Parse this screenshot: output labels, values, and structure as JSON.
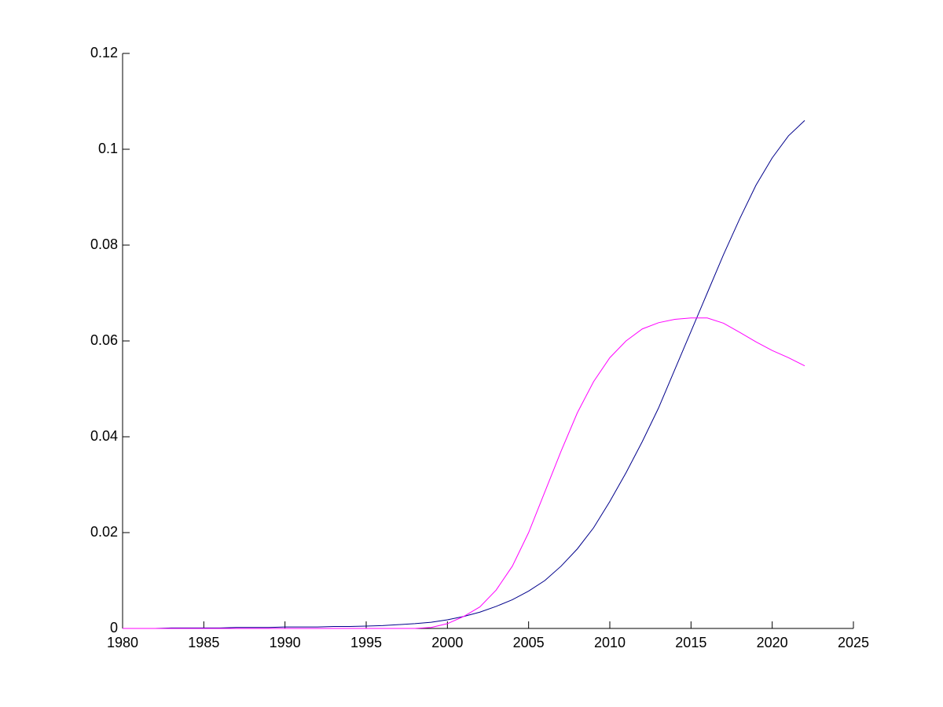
{
  "chart_data": {
    "type": "line",
    "x": [
      1980,
      1981,
      1982,
      1983,
      1984,
      1985,
      1986,
      1987,
      1988,
      1989,
      1990,
      1991,
      1992,
      1993,
      1994,
      1995,
      1996,
      1997,
      1998,
      1999,
      2000,
      2001,
      2002,
      2003,
      2004,
      2005,
      2006,
      2007,
      2008,
      2009,
      2010,
      2011,
      2012,
      2013,
      2014,
      2015,
      2016,
      2017,
      2018,
      2019,
      2020,
      2021,
      2022
    ],
    "series": [
      {
        "color": "#00008b",
        "values": [
          0,
          0,
          0,
          0.0001,
          0.0001,
          0.0001,
          0.0001,
          0.0002,
          0.0002,
          0.0002,
          0.0003,
          0.0003,
          0.0003,
          0.0004,
          0.0004,
          0.0005,
          0.0006,
          0.0008,
          0.001,
          0.0013,
          0.0018,
          0.0025,
          0.0034,
          0.0046,
          0.006,
          0.0078,
          0.01,
          0.013,
          0.0166,
          0.021,
          0.0265,
          0.0325,
          0.039,
          0.046,
          0.054,
          0.062,
          0.07,
          0.078,
          0.0855,
          0.0925,
          0.0982,
          0.1028,
          0.106
        ]
      },
      {
        "color": "#ff00ff",
        "values": [
          0,
          0,
          0,
          0,
          0,
          0,
          0,
          0,
          0,
          0,
          0,
          0,
          0,
          0,
          0,
          0,
          0,
          0,
          0,
          0.0002,
          0.001,
          0.0025,
          0.0045,
          0.008,
          0.013,
          0.02,
          0.0285,
          0.037,
          0.045,
          0.0515,
          0.0565,
          0.06,
          0.0625,
          0.0638,
          0.0645,
          0.0648,
          0.0648,
          0.0637,
          0.0618,
          0.0598,
          0.058,
          0.0565,
          0.0548
        ]
      }
    ],
    "xlim": [
      1980,
      2025
    ],
    "xticks": [
      1980,
      1985,
      1990,
      1995,
      2000,
      2005,
      2010,
      2015,
      2020,
      2025
    ],
    "ylim": [
      0,
      0.12
    ],
    "yticks": [
      0,
      0.02,
      0.04,
      0.06,
      0.08,
      0.1,
      0.12
    ]
  }
}
